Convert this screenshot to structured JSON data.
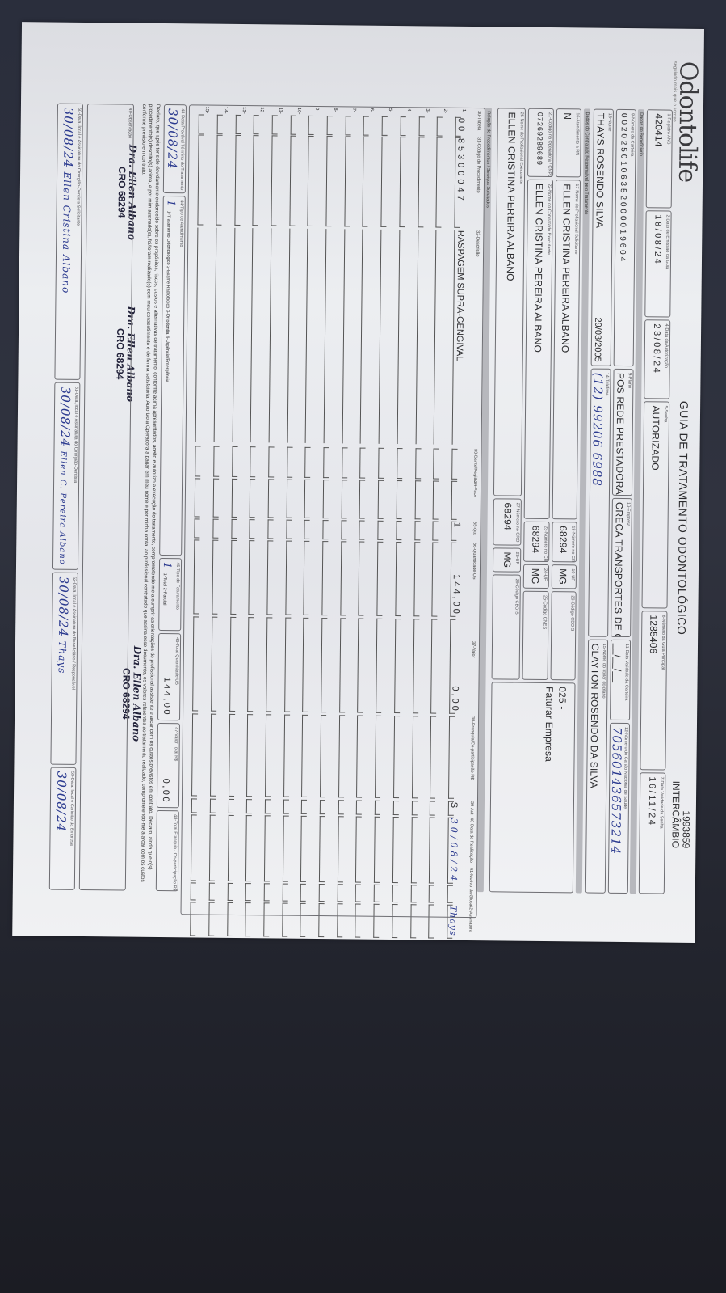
{
  "header": {
    "logo": "Odontolife",
    "logo_tagline": "seguindo mais que o sorriso",
    "title": "GUIA DE TRATAMENTO ODONTOLÓGICO",
    "guide_number": "1993859",
    "guide_type": "INTERCÂMBIO"
  },
  "sections": {
    "beneficiary": "Dados do Beneficiário",
    "contractor": "Dados do Contratado Responsável pelo Tratamento",
    "procedures": "Relação de Procedimentos / Serviços Solicitados"
  },
  "fields": {
    "f1": {
      "label": "1-Registro ANS",
      "value": "420414"
    },
    "f2": {
      "label": "2-Data de Emissão da Guia",
      "value": "18/08/24"
    },
    "f4": {
      "label": "4-Data da Autorização",
      "value": "23/08/24"
    },
    "f5": {
      "label": "5-Senha",
      "value": "AUTORIZADO"
    },
    "f6": {
      "label": "6-Número da Guia Principal",
      "value": "1285406"
    },
    "f7": {
      "label": "7-Data Validade da Senha",
      "value": "16/11/24"
    },
    "f8": {
      "label": "8-Número da Carteira",
      "value": "0020250106352000019604"
    },
    "f9": {
      "label": "9-Plano",
      "value": "POS REDE PRESTADORA"
    },
    "f10": {
      "label": "10-Empresa",
      "value": "GRECA TRANSPORTES DE CARGAS"
    },
    "f11": {
      "label": "11-Data Validade da Carteira",
      "value": "__/__/__"
    },
    "f12": {
      "label": "12-Número do Cartão Nacional de Saúde",
      "value": "705601436573214"
    },
    "f13": {
      "label": "13-Nome",
      "value": "THAYS ROSENDO SILVA",
      "birth_date": "29/03/2005"
    },
    "f14": {
      "label": "14-Telefone",
      "value": "(12) 99206 6988"
    },
    "f15": {
      "label": "15-Nome do titular do plano",
      "value": "CLAYTON ROSENDO DA SILVA"
    },
    "f16": {
      "label": "16-Atendimento a RN",
      "value": "N"
    },
    "f17": {
      "label": "17-Nome do Profissional Solicitante",
      "value": "ELLEN CRISTINA PEREIRA ALBANO"
    },
    "f18": {
      "label": "18-Número no CRO",
      "value": "68294"
    },
    "f19": {
      "label": "19-UF",
      "value": "MG"
    },
    "f20": {
      "label": "20-Código CBO S",
      "value": ""
    },
    "f21": {
      "label": "21-Código na Operadora / CNPJ / CPF",
      "value": "07269289689"
    },
    "f22": {
      "label": "22-Nome do Contratado Executante",
      "value": "ELLEN CRISTINA PEREIRA ALBANO"
    },
    "f23": {
      "label": "23-Número no CRO",
      "value": "68294"
    },
    "f24": {
      "label": "24-UF",
      "value": "MG"
    },
    "f25": {
      "label": "25-Código CNES",
      "value": ""
    },
    "f26": {
      "label": "26-Nome do Profissional Executante",
      "value": "ELLEN CRISTINA PEREIRA ALBANO"
    },
    "f27": {
      "label": "27-Número no CRO",
      "value": "68294"
    },
    "f28": {
      "label": "28-UF",
      "value": "MG"
    },
    "f29": {
      "label": "29-Código CBO S",
      "value": ""
    },
    "billing_note_code": "025 -",
    "billing_note": "Faturar Empresa"
  },
  "procedures": {
    "columns": [
      "30-Tabela",
      "31-Código do Procedimento",
      "32-Descrição",
      "33-Dente/Região",
      "34-Face",
      "35-Qtd",
      "36-Quantidade US",
      "37-Valor",
      "38-Franquia/Co-participação R$",
      "39-Aut",
      "40-Data de Realização",
      "41-Motivo da Glosa",
      "42-Assinatura"
    ],
    "rows": [
      {
        "n": "1-",
        "tabela": "00",
        "codigo": "85300047",
        "descricao": "RASPAGEM SUPRA-GENGIVAL",
        "dente": "",
        "face": "",
        "qtd": "1",
        "us": "144,00",
        "valor": "0,00",
        "franquia": "",
        "aut": "S",
        "data": "30/08/24",
        "glosa": "",
        "assinatura": "Thays"
      },
      {
        "n": "2-"
      },
      {
        "n": "3-"
      },
      {
        "n": "4-"
      },
      {
        "n": "5-"
      },
      {
        "n": "6-"
      },
      {
        "n": "7-"
      },
      {
        "n": "8-"
      },
      {
        "n": "9-"
      },
      {
        "n": "10-"
      },
      {
        "n": "11-"
      },
      {
        "n": "12-"
      },
      {
        "n": "13-"
      },
      {
        "n": "14-"
      },
      {
        "n": "15-"
      }
    ]
  },
  "totals": {
    "f43": {
      "label": "43-Data Provável Término do Tratamento",
      "value": "30/08/24"
    },
    "f44": {
      "label": "44-Tipo de Atendimento",
      "value": "1",
      "options": "1-Tratamento Odontológico  2-Exame Radiológico  3-Ortodontia  4-Urgência/Emergência"
    },
    "f45": {
      "label": "45-Tipo de Faturamento",
      "value": "1",
      "options": "1-Total 2-Parcial"
    },
    "f46": {
      "label": "46-Total Quantidade US",
      "value": "144,00"
    },
    "f47": {
      "label": "47-Valor Total R$",
      "value": "0,00"
    },
    "f48": {
      "label": "48-Total Franquia / Co-participação R$",
      "value": ""
    }
  },
  "declaration": "Declaro, que após ter sido devidamente esclarecido sobre os propósitos, riscos, custos e alternativas de tratamento, conforme acima apresentados, aceito e autorizo a execução do tratamento, comprometendo-me a cumprir as orientações do profissional assistente e arcar com os custos previstos em contrato. Declaro, ainda que o(s) procedimento(s) descrito(s) acima, e por mim assinado(s), foi/foram realizado(s) com meu consentimento e de forma satisfatória. Autorizo a Operadora a pagar em meu nome e por minha conta, ao profissional contratado que assina esse documento, os valores referentes ao tratamento realizado, comprometendo-me a arcar com os custos conforme previsto em contrato.",
  "stamp": {
    "name": "Dra. Ellen Albano",
    "cro": "CRO 68294"
  },
  "observation": {
    "label": "49-Observação",
    "value": ""
  },
  "signatures": {
    "f50": {
      "label": "50-Data, local e Assinatura do Cirurgião-Dentista Solicitante",
      "date": "30/08/24",
      "sign": "Ellen Cristina Albano"
    },
    "f51": {
      "label": "51-Data, local e Assinatura do Cirurgião-Dentista",
      "date": "30/08/24",
      "sign": "Ellen C. Pereira Albano"
    },
    "f52": {
      "label": "52-Data, local e Assinatura do Beneficiário / Responsável",
      "date": "30/08/24",
      "sign": "Thays"
    },
    "f53": {
      "label": "53-Data, local e Carimbo da Empresa",
      "date": "30/08/24"
    }
  },
  "colors": {
    "paper": "#e8e9ed",
    "ink": "#2b3a8f",
    "background": "#2a2e3c"
  }
}
